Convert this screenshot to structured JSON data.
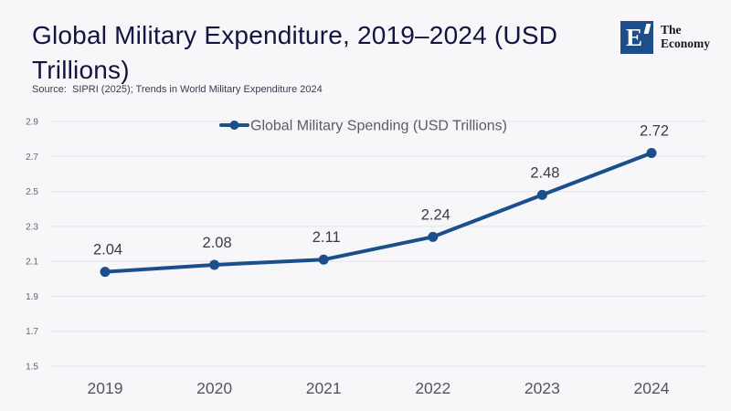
{
  "page": {
    "background": "#f7f7fa"
  },
  "header": {
    "title": "Global Military Expenditure, 2019–2024 (USD Trillions)",
    "source": "Source:  SIPRI (2025); Trends in World Military Expenditure 2024"
  },
  "logo": {
    "monogram": "E",
    "name_line1": "The",
    "name_line2": "Economy",
    "square_color": "#1d4e89"
  },
  "chart_data": {
    "type": "line",
    "title": "Global Military Expenditure, 2019–2024 (USD Trillions)",
    "categories": [
      "2019",
      "2020",
      "2021",
      "2022",
      "2023",
      "2024"
    ],
    "series": [
      {
        "name": "Global Military Spending (USD Trillions)",
        "values": [
          2.04,
          2.08,
          2.11,
          2.24,
          2.48,
          2.72
        ]
      }
    ],
    "data_labels": [
      "2.04",
      "2.08",
      "2.11",
      "2.24",
      "2.48",
      "2.72"
    ],
    "y_ticks": [
      1.5,
      1.7,
      1.9,
      2.1,
      2.3,
      2.5,
      2.7,
      2.9
    ],
    "ylim": [
      1.5,
      2.9
    ],
    "xlabel": "",
    "ylabel": "",
    "grid": true,
    "legend_position": "top-center",
    "colors": {
      "line": "#1b4f8c",
      "marker": "#1b4f8c"
    }
  },
  "theme": {
    "grid_color": "#e3e3e9",
    "y_tick_color": "#63636b",
    "x_tick_color": "#55555d",
    "data_label_color": "#3b3b43",
    "legend_text_color": "#5b5b63"
  }
}
